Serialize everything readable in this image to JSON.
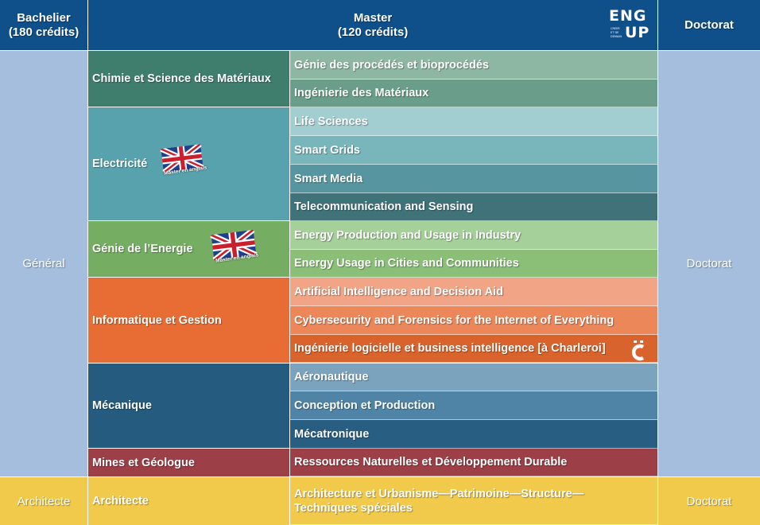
{
  "header": {
    "bachelier_line1": "Bachelier",
    "bachelier_line2": "(180 crédits)",
    "master_line1": "Master",
    "master_line2": "(120 crédits)",
    "doctorat": "Doctorat",
    "logo": {
      "top": "ENG",
      "bottom": "UP",
      "sub1": "CREER",
      "sub2": "ET DE",
      "sub3": "DEMAIN"
    }
  },
  "left": {
    "general": "Général",
    "architecte": "Architecte"
  },
  "right": {
    "doctorat_general": "Doctorat",
    "doctorat_architecte": "Doctorat"
  },
  "domains": [
    {
      "label": "Chimie et Science des Matériaux",
      "color": "#3f7d6d"
    },
    {
      "label": "Electricité",
      "color": "#58a2ad",
      "flag_caption": "Master en anglais"
    },
    {
      "label": "Génie de l’Energie",
      "color": "#75ad62",
      "flag_caption": "Master en anglais"
    },
    {
      "label": "Informatique et Gestion",
      "color": "#e76d35"
    },
    {
      "label": "Mécanique",
      "color": "#245b7e"
    },
    {
      "label": "Mines et Géologue",
      "color": "#9c3f47"
    },
    {
      "label": "Architecte",
      "color": "#f1c94b"
    }
  ],
  "specializations": [
    {
      "label": "Génie des procédés et bioprocédés",
      "color": "#8db6a3"
    },
    {
      "label": "Ingénierie des Matériaux",
      "color": "#6a9e8a"
    },
    {
      "label": "Life Sciences",
      "color": "#a2cdd1"
    },
    {
      "label": "Smart Grids",
      "color": "#78b6bc"
    },
    {
      "label": "Smart Media",
      "color": "#5796a0"
    },
    {
      "label": "Telecommunication and Sensing",
      "color": "#3f7379"
    },
    {
      "label": "Energy Production and Usage in Industry",
      "color": "#a6d09a"
    },
    {
      "label": "Energy Usage in Cities and Communities",
      "color": "#8bbf77"
    },
    {
      "label": "Artificial Intelligence and Decision Aid",
      "color": "#f1a486"
    },
    {
      "label": "Cybersecurity and Forensics for the Internet of Everything",
      "color": "#ec875a"
    },
    {
      "label": "Ingénierie logicielle et business intelligence [à Charleroi]",
      "color": "#d9632c"
    },
    {
      "label": "Aéronautique",
      "color": "#7ba3bd"
    },
    {
      "label": "Conception et Production",
      "color": "#4f84a6"
    },
    {
      "label": "Mécatronique",
      "color": "#285e82"
    },
    {
      "label": "Ressources Naturelles et Développement Durable",
      "color": "#9c3f47"
    }
  ],
  "architecture_spec_line1": "Architecture et Urbanisme—Patrimoine—Structure—",
  "architecture_spec_line2": "Techniques spéciales",
  "colors": {
    "header": "#0f4f8a",
    "side_general": "#a6bedd",
    "architecture_row": "#f1c94b"
  }
}
